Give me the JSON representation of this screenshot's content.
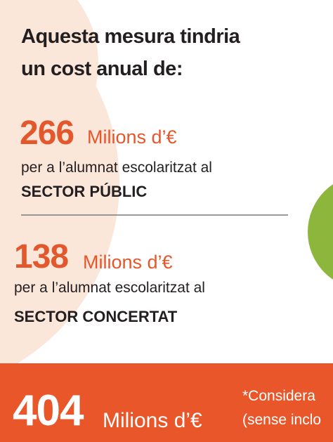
{
  "heading": {
    "lines": [
      "Aquesta mesura tindria",
      "un cost anual de:"
    ]
  },
  "items": [
    {
      "amount": 266,
      "unit": "Milions d’€",
      "description": "per a l’alumnat escolaritzat al",
      "sector": "SECTOR PÚBLIC"
    },
    {
      "amount": 138,
      "unit": "Milions d’€",
      "description": "per a l’alumnat escolaritzat al",
      "sector": "SECTOR CONCERTAT"
    }
  ],
  "total": {
    "amount": 404,
    "unit": "Milions d’€",
    "note_lines": [
      "*Considera",
      "(sense inclo"
    ]
  }
}
